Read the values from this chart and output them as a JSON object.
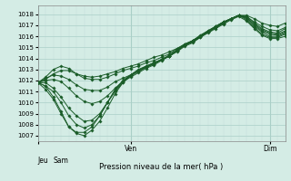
{
  "xlabel": "Pression niveau de la mer( hPa )",
  "ylim": [
    1006.5,
    1018.8
  ],
  "xlim": [
    0,
    96
  ],
  "yticks": [
    1007,
    1008,
    1009,
    1010,
    1011,
    1012,
    1013,
    1014,
    1015,
    1016,
    1017,
    1018
  ],
  "bg_color": "#d4ece5",
  "grid_major_color": "#aacfc7",
  "grid_minor_color": "#c2ddd8",
  "line_color": "#1a5c28",
  "line_width": 0.7,
  "marker_size": 1.8,
  "series": [
    [
      1011.8,
      1011.5,
      1010.5,
      1009.2,
      1007.8,
      1007.2,
      1007.0,
      1007.5,
      1008.3,
      1009.5,
      1010.8,
      1011.8,
      1012.5,
      1013.0,
      1013.3,
      1013.6,
      1013.9,
      1014.2,
      1014.6,
      1015.1,
      1015.4,
      1015.9,
      1016.4,
      1016.9,
      1017.3,
      1017.6,
      1017.9,
      1017.9,
      1017.6,
      1017.2,
      1017.0,
      1016.9,
      1017.2
    ],
    [
      1011.8,
      1011.2,
      1010.3,
      1009.0,
      1007.8,
      1007.3,
      1007.3,
      1007.8,
      1008.8,
      1010.0,
      1011.2,
      1012.0,
      1012.5,
      1012.9,
      1013.2,
      1013.5,
      1013.9,
      1014.2,
      1014.7,
      1015.2,
      1015.5,
      1016.0,
      1016.5,
      1016.9,
      1017.3,
      1017.6,
      1017.9,
      1017.8,
      1017.3,
      1016.9,
      1016.6,
      1016.5,
      1016.8
    ],
    [
      1011.8,
      1011.5,
      1011.0,
      1010.0,
      1008.8,
      1008.0,
      1007.7,
      1008.0,
      1008.8,
      1010.0,
      1011.1,
      1011.9,
      1012.5,
      1012.9,
      1013.3,
      1013.6,
      1013.9,
      1014.3,
      1014.8,
      1015.3,
      1015.6,
      1016.1,
      1016.5,
      1016.9,
      1017.3,
      1017.6,
      1017.9,
      1017.8,
      1017.2,
      1016.7,
      1016.4,
      1016.3,
      1016.7
    ],
    [
      1011.8,
      1011.8,
      1011.3,
      1010.5,
      1009.5,
      1008.8,
      1008.3,
      1008.4,
      1009.0,
      1010.0,
      1011.0,
      1011.8,
      1012.4,
      1012.8,
      1013.2,
      1013.5,
      1013.9,
      1014.2,
      1014.7,
      1015.2,
      1015.6,
      1016.0,
      1016.4,
      1016.8,
      1017.2,
      1017.6,
      1017.9,
      1017.7,
      1017.1,
      1016.6,
      1016.3,
      1016.2,
      1016.5
    ],
    [
      1011.8,
      1012.0,
      1012.1,
      1011.9,
      1011.3,
      1010.6,
      1010.1,
      1009.9,
      1010.1,
      1010.6,
      1011.3,
      1011.9,
      1012.3,
      1012.7,
      1013.1,
      1013.4,
      1013.8,
      1014.2,
      1014.7,
      1015.2,
      1015.5,
      1016.0,
      1016.4,
      1016.8,
      1017.2,
      1017.6,
      1017.9,
      1017.7,
      1017.0,
      1016.5,
      1016.2,
      1016.1,
      1016.4
    ],
    [
      1011.8,
      1012.2,
      1012.5,
      1012.4,
      1012.1,
      1011.6,
      1011.2,
      1011.1,
      1011.1,
      1011.4,
      1011.9,
      1012.2,
      1012.5,
      1012.9,
      1013.2,
      1013.5,
      1013.9,
      1014.2,
      1014.7,
      1015.2,
      1015.5,
      1016.0,
      1016.4,
      1016.8,
      1017.2,
      1017.6,
      1017.9,
      1017.6,
      1016.9,
      1016.4,
      1016.0,
      1016.0,
      1016.3
    ],
    [
      1011.8,
      1012.3,
      1013.0,
      1013.3,
      1013.1,
      1012.6,
      1012.2,
      1012.1,
      1012.1,
      1012.3,
      1012.6,
      1012.9,
      1013.1,
      1013.3,
      1013.6,
      1013.8,
      1014.1,
      1014.4,
      1014.9,
      1015.3,
      1015.6,
      1016.0,
      1016.4,
      1016.8,
      1017.2,
      1017.6,
      1017.9,
      1017.5,
      1016.8,
      1016.2,
      1015.9,
      1015.9,
      1016.2
    ],
    [
      1011.8,
      1012.1,
      1012.6,
      1012.9,
      1012.9,
      1012.6,
      1012.4,
      1012.3,
      1012.4,
      1012.6,
      1012.8,
      1013.1,
      1013.3,
      1013.5,
      1013.8,
      1014.1,
      1014.3,
      1014.6,
      1014.9,
      1015.2,
      1015.5,
      1015.9,
      1016.3,
      1016.7,
      1017.1,
      1017.5,
      1017.8,
      1017.4,
      1016.7,
      1016.1,
      1015.8,
      1015.8,
      1016.0
    ]
  ],
  "x_step": 3,
  "num_points": 33,
  "jeu_x": 0,
  "sam_x": 6,
  "ven_x": 36,
  "dim_x": 90
}
